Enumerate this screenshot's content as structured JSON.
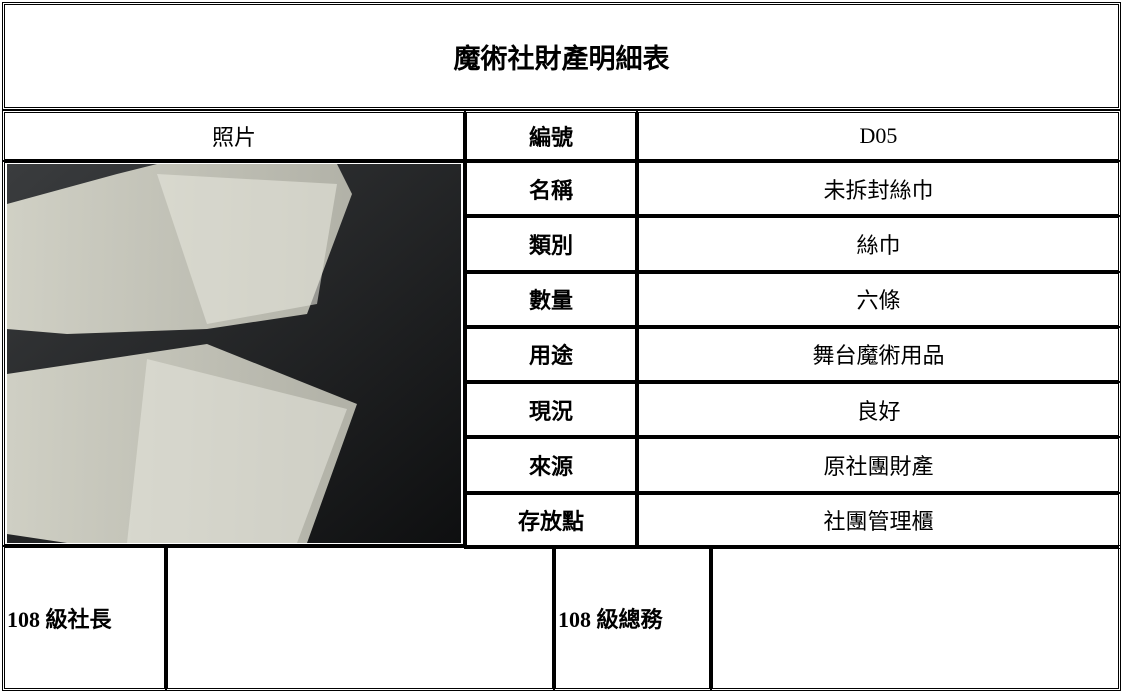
{
  "title": "魔術社財產明細表",
  "header": {
    "photo": "照片",
    "label": "編號",
    "value": "D05"
  },
  "rows": [
    {
      "label": "名稱",
      "value": "未拆封絲巾"
    },
    {
      "label": "類別",
      "value": "絲巾"
    },
    {
      "label": "數量",
      "value": "六條"
    },
    {
      "label": "用途",
      "value": "舞台魔術用品"
    },
    {
      "label": "現況",
      "value": "良好"
    },
    {
      "label": "來源",
      "value": "原社團財產"
    },
    {
      "label": "存放點",
      "value": "社團管理櫃"
    }
  ],
  "signatures": [
    {
      "label": "108 級社長"
    },
    {
      "label": "108 級總務"
    }
  ]
}
